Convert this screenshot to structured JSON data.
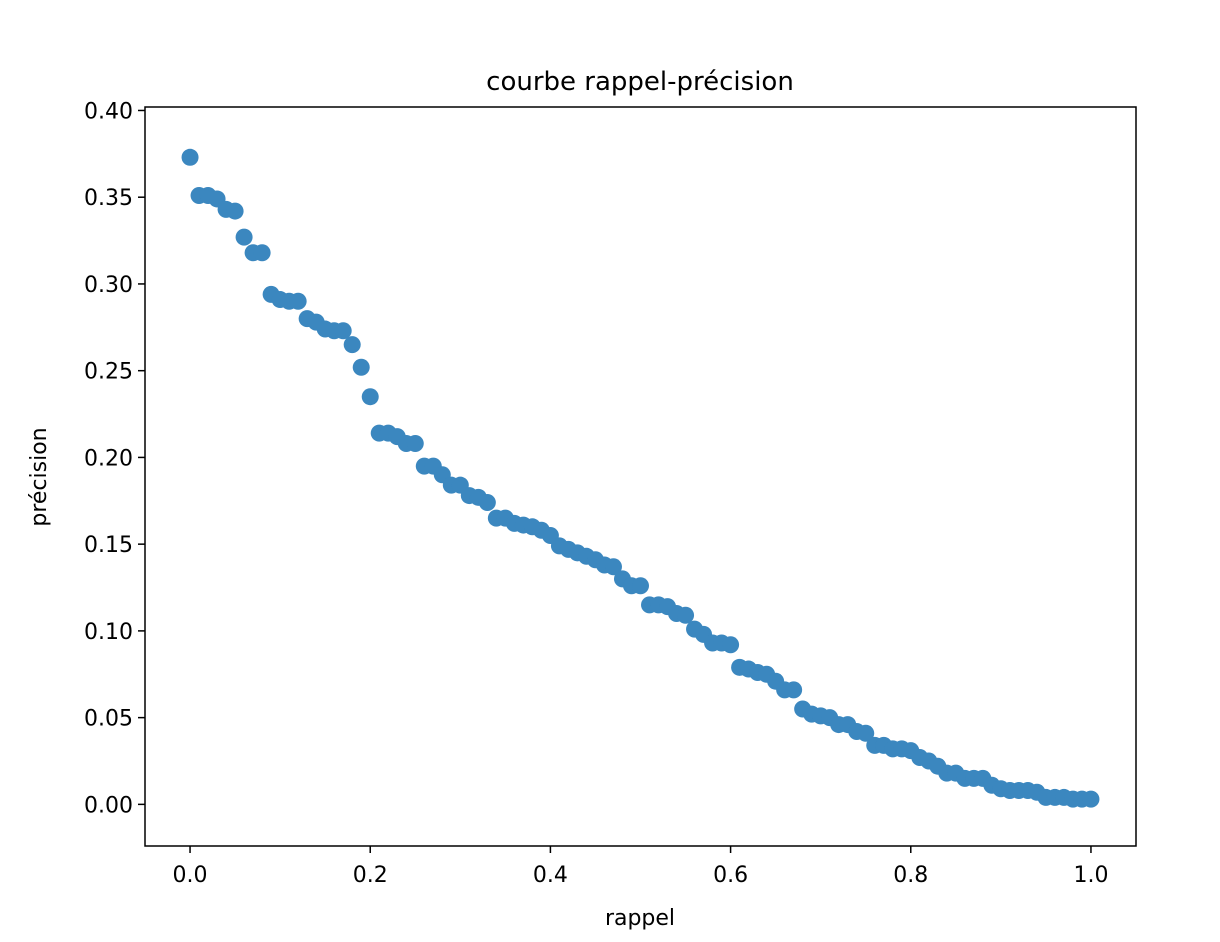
{
  "chart_data": {
    "type": "scatter",
    "title": "courbe rappel-précision",
    "xlabel": "rappel",
    "ylabel": "précision",
    "xlim": [
      -0.05,
      1.05
    ],
    "ylim": [
      -0.024,
      0.402
    ],
    "xticks": [
      0.0,
      0.2,
      0.4,
      0.6,
      0.8,
      1.0
    ],
    "xtick_labels": [
      "0.0",
      "0.2",
      "0.4",
      "0.6",
      "0.8",
      "1.0"
    ],
    "yticks": [
      0.0,
      0.05,
      0.1,
      0.15,
      0.2,
      0.25,
      0.3,
      0.35,
      0.4
    ],
    "ytick_labels": [
      "0.00",
      "0.05",
      "0.10",
      "0.15",
      "0.20",
      "0.25",
      "0.30",
      "0.35",
      "0.40"
    ],
    "grid": false,
    "marker_color": "#3b87bf",
    "x": [
      0.0,
      0.01,
      0.02,
      0.03,
      0.04,
      0.05,
      0.06,
      0.07,
      0.08,
      0.09,
      0.1,
      0.11,
      0.12,
      0.13,
      0.14,
      0.15,
      0.16,
      0.17,
      0.18,
      0.19,
      0.2,
      0.21,
      0.22,
      0.23,
      0.24,
      0.25,
      0.26,
      0.27,
      0.28,
      0.29,
      0.3,
      0.31,
      0.32,
      0.33,
      0.34,
      0.35,
      0.36,
      0.37,
      0.38,
      0.39,
      0.4,
      0.41,
      0.42,
      0.43,
      0.44,
      0.45,
      0.46,
      0.47,
      0.48,
      0.49,
      0.5,
      0.51,
      0.52,
      0.53,
      0.54,
      0.55,
      0.56,
      0.57,
      0.58,
      0.59,
      0.6,
      0.61,
      0.62,
      0.63,
      0.64,
      0.65,
      0.66,
      0.67,
      0.68,
      0.69,
      0.7,
      0.71,
      0.72,
      0.73,
      0.74,
      0.75,
      0.76,
      0.77,
      0.78,
      0.79,
      0.8,
      0.81,
      0.82,
      0.83,
      0.84,
      0.85,
      0.86,
      0.87,
      0.88,
      0.89,
      0.9,
      0.91,
      0.92,
      0.93,
      0.94,
      0.95,
      0.96,
      0.97,
      0.98,
      0.99,
      1.0
    ],
    "y": [
      0.373,
      0.351,
      0.351,
      0.349,
      0.343,
      0.342,
      0.327,
      0.318,
      0.318,
      0.294,
      0.291,
      0.29,
      0.29,
      0.28,
      0.278,
      0.274,
      0.273,
      0.273,
      0.265,
      0.252,
      0.235,
      0.214,
      0.214,
      0.212,
      0.208,
      0.208,
      0.195,
      0.195,
      0.19,
      0.184,
      0.184,
      0.178,
      0.177,
      0.174,
      0.165,
      0.165,
      0.162,
      0.161,
      0.16,
      0.158,
      0.155,
      0.149,
      0.147,
      0.145,
      0.143,
      0.141,
      0.138,
      0.137,
      0.13,
      0.126,
      0.126,
      0.115,
      0.115,
      0.114,
      0.11,
      0.109,
      0.101,
      0.098,
      0.093,
      0.093,
      0.092,
      0.079,
      0.078,
      0.076,
      0.075,
      0.071,
      0.066,
      0.066,
      0.055,
      0.052,
      0.051,
      0.05,
      0.046,
      0.046,
      0.042,
      0.041,
      0.034,
      0.034,
      0.032,
      0.032,
      0.031,
      0.027,
      0.025,
      0.022,
      0.018,
      0.018,
      0.015,
      0.015,
      0.015,
      0.011,
      0.009,
      0.008,
      0.008,
      0.008,
      0.007,
      0.004,
      0.004,
      0.004,
      0.003,
      0.003,
      0.003
    ]
  }
}
